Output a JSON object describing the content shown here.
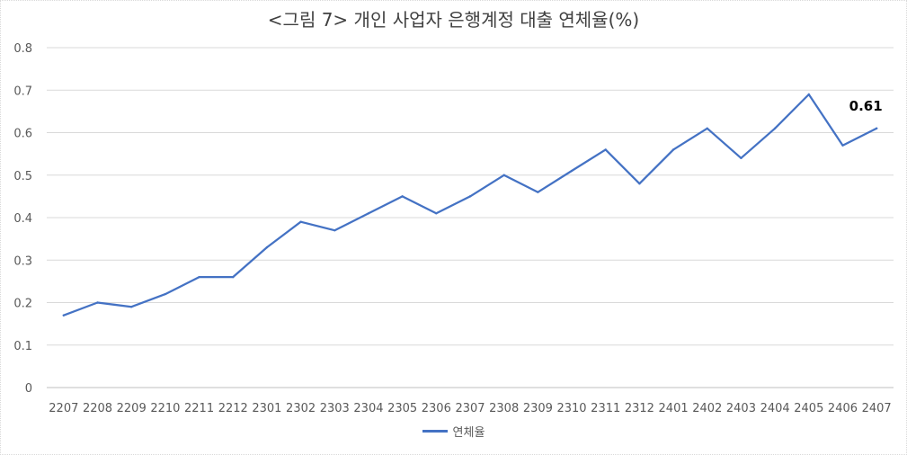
{
  "chart_data": {
    "type": "line",
    "title": "<그림 7> 개인 사업자  은행계정 대출 연체율(%)",
    "categories": [
      "2207",
      "2208",
      "2209",
      "2210",
      "2211",
      "2212",
      "2301",
      "2302",
      "2303",
      "2304",
      "2305",
      "2306",
      "2307",
      "2308",
      "2309",
      "2310",
      "2311",
      "2312",
      "2401",
      "2402",
      "2403",
      "2404",
      "2405",
      "2406",
      "2407"
    ],
    "series": [
      {
        "name": "연체율",
        "color": "#4472c4",
        "values": [
          0.17,
          0.2,
          0.19,
          0.22,
          0.26,
          0.26,
          0.33,
          0.39,
          0.37,
          0.41,
          0.45,
          0.41,
          0.45,
          0.5,
          0.46,
          0.51,
          0.56,
          0.48,
          0.56,
          0.61,
          0.54,
          0.61,
          0.69,
          0.57,
          0.61
        ]
      }
    ],
    "ylim": [
      0,
      0.8
    ],
    "yticks": [
      "0",
      "0.1",
      "0.2",
      "0.3",
      "0.4",
      "0.5",
      "0.6",
      "0.7",
      "0.8"
    ],
    "annotation": {
      "text": "0.61",
      "index": 24
    },
    "grid": true,
    "legend_position": "bottom"
  }
}
